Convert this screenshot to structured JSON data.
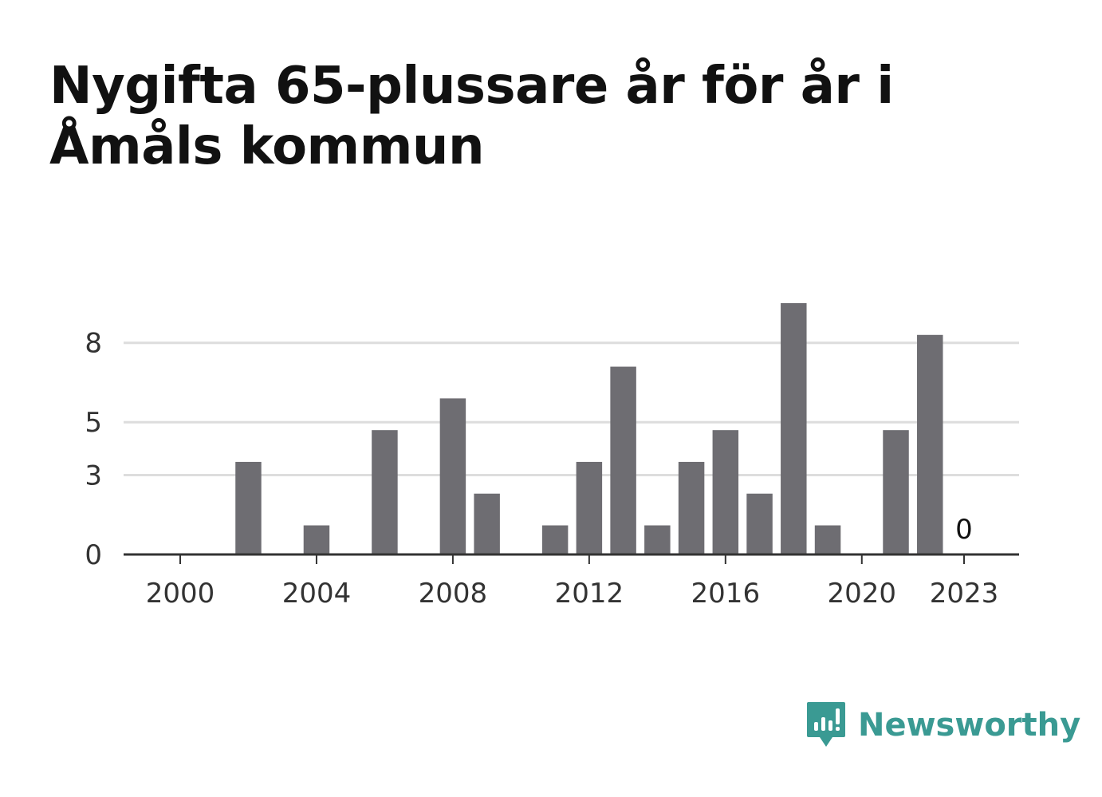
{
  "title": "Nygifta 65-plussare år för år i Åmåls kommun",
  "brand": {
    "name": "Newsworthy",
    "color": "#3a9a93",
    "icon": "newsworthy-logo-icon"
  },
  "colors": {
    "bar": "#6e6d72",
    "grid": "#dddddd",
    "axis": "#333333"
  },
  "chart_data": {
    "type": "bar",
    "title": "Nygifta 65-plussare år för år i Åmåls kommun",
    "xlabel": "",
    "ylabel": "",
    "x": [
      2000,
      2001,
      2002,
      2003,
      2004,
      2005,
      2006,
      2007,
      2008,
      2009,
      2010,
      2011,
      2012,
      2013,
      2014,
      2015,
      2016,
      2017,
      2018,
      2019,
      2020,
      2021,
      2022,
      2023
    ],
    "values": [
      0,
      0,
      3.5,
      0,
      1.1,
      0,
      4.7,
      0,
      5.9,
      2.3,
      0,
      1.1,
      3.5,
      7.1,
      1.1,
      3.5,
      4.7,
      2.3,
      9.5,
      1.1,
      0,
      4.7,
      8.3,
      0
    ],
    "ylim": [
      0,
      9.5
    ],
    "y_ticks": [
      0,
      3,
      5,
      8
    ],
    "x_ticks": [
      2000,
      2004,
      2008,
      2012,
      2016,
      2020,
      2023
    ],
    "data_labels": [
      {
        "x": 2023,
        "text": "0"
      }
    ],
    "grid": true,
    "legend": "none"
  }
}
